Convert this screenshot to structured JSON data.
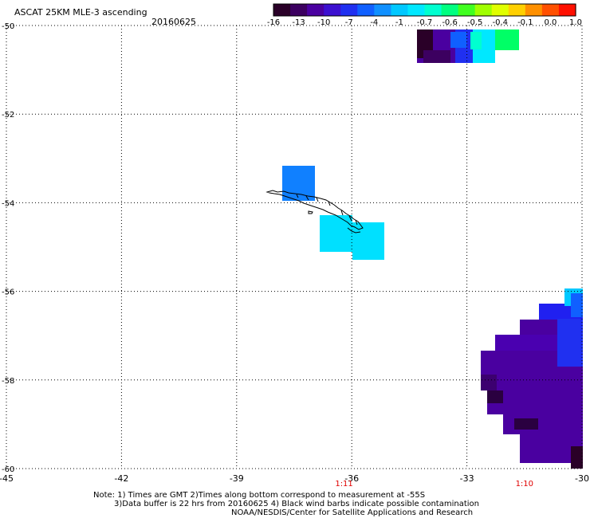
{
  "header": {
    "title": "ASCAT 25KM MLE-3 ascending",
    "date": "20160625"
  },
  "colorbar": {
    "colors": [
      "#2a0028",
      "#3c0060",
      "#4a00a0",
      "#3c10d0",
      "#2030f0",
      "#1060ff",
      "#1090ff",
      "#00c8ff",
      "#00e8ff",
      "#00ffd0",
      "#00ff80",
      "#40ff20",
      "#a0ff00",
      "#e0ff00",
      "#ffd000",
      "#ff9000",
      "#ff5000",
      "#ff1000"
    ],
    "tick_labels": [
      "-16",
      "-13",
      "-10",
      "-7",
      "-4",
      "-1",
      "-0.7",
      "-0.6",
      "-0.5",
      "-0.4",
      "-0.1",
      "0.0",
      "1.0"
    ]
  },
  "map": {
    "lon_range": [
      -45,
      -30
    ],
    "lat_range": [
      -60,
      -50
    ],
    "lon_ticks": [
      {
        "value": -45,
        "label": "-45"
      },
      {
        "value": -42,
        "label": "-42"
      },
      {
        "value": -39,
        "label": "-39"
      },
      {
        "value": -36,
        "label": "-36"
      },
      {
        "value": -33,
        "label": "-33"
      },
      {
        "value": -30,
        "label": "-30"
      }
    ],
    "lat_ticks": [
      {
        "value": -50,
        "label": "-50"
      },
      {
        "value": -52,
        "label": "-52"
      },
      {
        "value": -54,
        "label": "-54"
      },
      {
        "value": -56,
        "label": "-56"
      },
      {
        "value": -58,
        "label": "-58"
      },
      {
        "value": -60,
        "label": "-60"
      }
    ],
    "grid": "dotted",
    "time_marks": [
      {
        "lon": -36.2,
        "label": "1:11"
      },
      {
        "lon": -31.5,
        "label": "1:10"
      }
    ]
  },
  "notes": {
    "line1": "Note: 1) Times are GMT 2)Times along bottom correspond to measurement at -55S",
    "line2": "3)Data buffer is 22 hrs from 20160625 4) Black wind barbs indicate possible contamination",
    "line3": "NOAA/NESDIS/Center for Satellite Applications and Research"
  }
}
